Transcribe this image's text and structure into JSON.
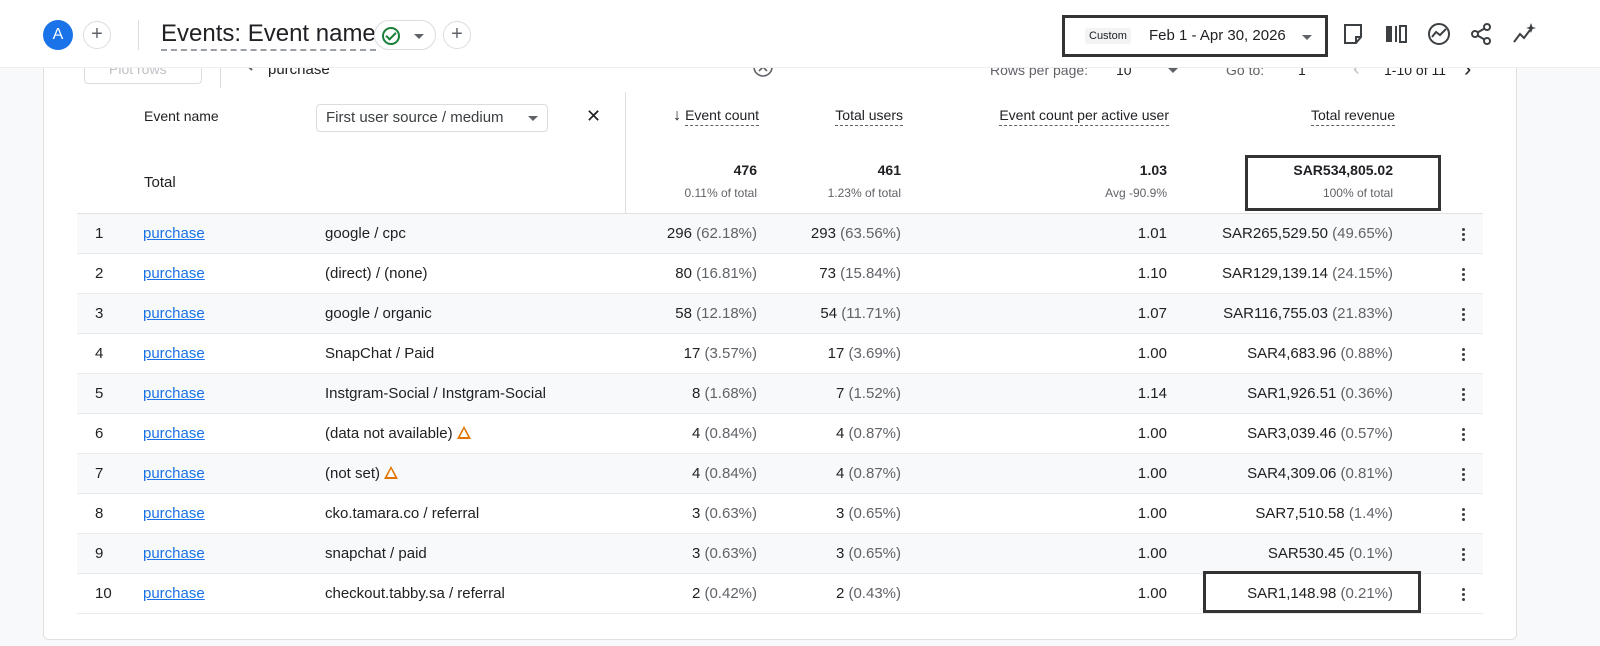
{
  "header": {
    "avatar_letter": "A",
    "report_title": "Events: Event name",
    "date_badge": "Custom",
    "date_range": "Feb 1 - Apr 30, 2026",
    "icons": [
      "add-comparison-icon",
      "check-circle-icon",
      "edit-report-icon",
      "compare-columns-icon",
      "insights-icon",
      "share-icon",
      "sparkle-icon"
    ]
  },
  "controls": {
    "plot_rows": "Plot rows",
    "search_value": "purchase",
    "rows_per_page_label": "Rows per page:",
    "rows_per_page": "10",
    "goto_label": "Go to:",
    "goto_value": "1",
    "pagination": "1-10 of 11"
  },
  "table": {
    "dim1_header": "Event name",
    "dim2_select": "First user source / medium",
    "columns": [
      "Event count",
      "Total users",
      "Event count per active user",
      "Total revenue"
    ],
    "totals": {
      "label": "Total",
      "event_count": "476",
      "event_count_sub": "0.11% of total",
      "total_users": "461",
      "total_users_sub": "1.23% of total",
      "per_user": "1.03",
      "per_user_sub": "Avg -90.9%",
      "revenue": "SAR534,805.02",
      "revenue_sub": "100% of total"
    },
    "rows": [
      {
        "idx": "1",
        "event": "purchase",
        "source": "google / cpc",
        "count": "296",
        "count_pct": "(62.18%)",
        "users": "293",
        "users_pct": "(63.56%)",
        "per_user": "1.01",
        "revenue": "SAR265,529.50",
        "revenue_pct": "(49.65%)"
      },
      {
        "idx": "2",
        "event": "purchase",
        "source": "(direct) / (none)",
        "count": "80",
        "count_pct": "(16.81%)",
        "users": "73",
        "users_pct": "(15.84%)",
        "per_user": "1.10",
        "revenue": "SAR129,139.14",
        "revenue_pct": "(24.15%)"
      },
      {
        "idx": "3",
        "event": "purchase",
        "source": "google / organic",
        "count": "58",
        "count_pct": "(12.18%)",
        "users": "54",
        "users_pct": "(11.71%)",
        "per_user": "1.07",
        "revenue": "SAR116,755.03",
        "revenue_pct": "(21.83%)"
      },
      {
        "idx": "4",
        "event": "purchase",
        "source": "SnapChat / Paid",
        "count": "17",
        "count_pct": "(3.57%)",
        "users": "17",
        "users_pct": "(3.69%)",
        "per_user": "1.00",
        "revenue": "SAR4,683.96",
        "revenue_pct": "(0.88%)"
      },
      {
        "idx": "5",
        "event": "purchase",
        "source": "Instgram-Social / Instgram-Social",
        "count": "8",
        "count_pct": "(1.68%)",
        "users": "7",
        "users_pct": "(1.52%)",
        "per_user": "1.14",
        "revenue": "SAR1,926.51",
        "revenue_pct": "(0.36%)"
      },
      {
        "idx": "6",
        "event": "purchase",
        "source": "(data not available)",
        "count": "4",
        "count_pct": "(0.84%)",
        "users": "4",
        "users_pct": "(0.87%)",
        "per_user": "1.00",
        "revenue": "SAR3,039.46",
        "revenue_pct": "(0.57%)",
        "warning": true
      },
      {
        "idx": "7",
        "event": "purchase",
        "source": "(not set)",
        "count": "4",
        "count_pct": "(0.84%)",
        "users": "4",
        "users_pct": "(0.87%)",
        "per_user": "1.00",
        "revenue": "SAR4,309.06",
        "revenue_pct": "(0.81%)",
        "warning": true
      },
      {
        "idx": "8",
        "event": "purchase",
        "source": "cko.tamara.co / referral",
        "count": "3",
        "count_pct": "(0.63%)",
        "users": "3",
        "users_pct": "(0.65%)",
        "per_user": "1.00",
        "revenue": "SAR7,510.58",
        "revenue_pct": "(1.4%)"
      },
      {
        "idx": "9",
        "event": "purchase",
        "source": "snapchat / paid",
        "count": "3",
        "count_pct": "(0.63%)",
        "users": "3",
        "users_pct": "(0.65%)",
        "per_user": "1.00",
        "revenue": "SAR530.45",
        "revenue_pct": "(0.1%)"
      },
      {
        "idx": "10",
        "event": "purchase",
        "source": "checkout.tabby.sa / referral",
        "count": "2",
        "count_pct": "(0.42%)",
        "users": "2",
        "users_pct": "(0.43%)",
        "per_user": "1.00",
        "revenue": "SAR1,148.98",
        "revenue_pct": "(0.21%)"
      }
    ]
  }
}
